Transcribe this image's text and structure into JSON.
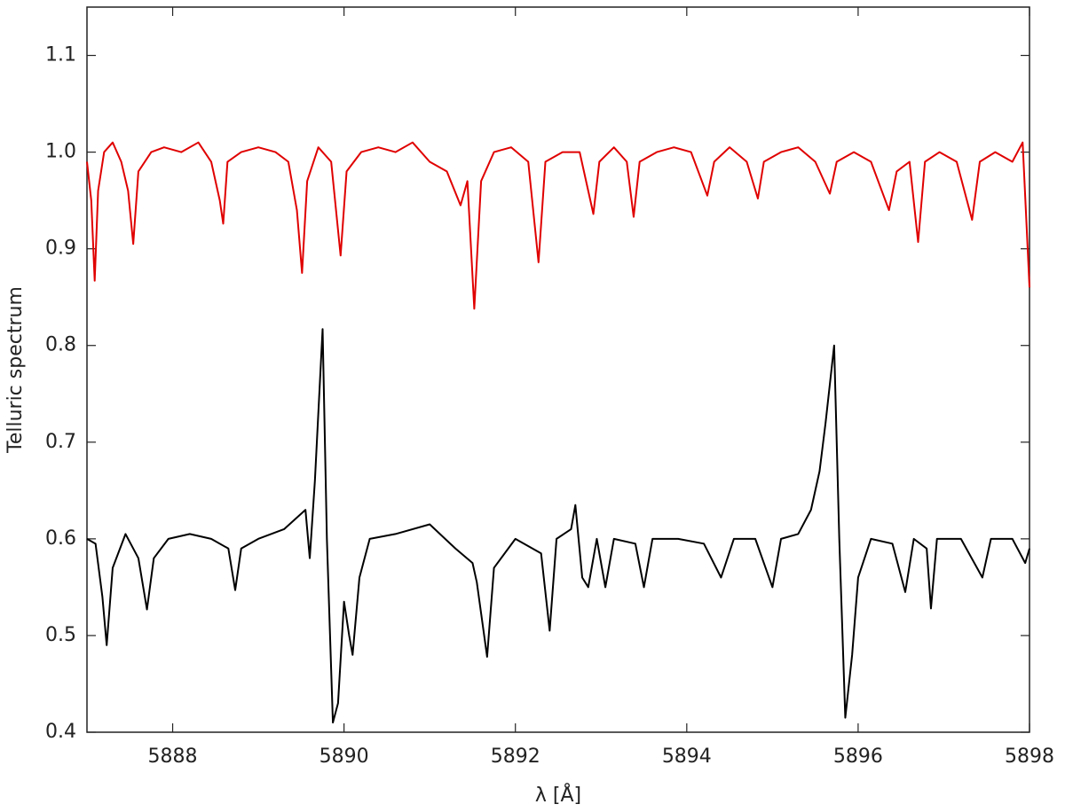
{
  "chart_data": {
    "type": "line",
    "xlabel": "λ [Å]",
    "ylabel": "Telluric spectrum",
    "xlim": [
      5887,
      5898
    ],
    "ylim": [
      0.4,
      1.15
    ],
    "xticks": [
      5888,
      5890,
      5892,
      5894,
      5896,
      5898
    ],
    "yticks": [
      0.4,
      0.5,
      0.6,
      0.7,
      0.8,
      0.9,
      {
        "value": 1,
        "label": "1.0"
      },
      1.1
    ],
    "grid": false,
    "series": [
      {
        "color": "#e00000",
        "x": [
          5887.0,
          5887.05,
          5887.09,
          5887.13,
          5887.2,
          5887.3,
          5887.4,
          5887.48,
          5887.54,
          5887.6,
          5887.75,
          5887.9,
          5888.1,
          5888.3,
          5888.45,
          5888.55,
          5888.59,
          5888.64,
          5888.8,
          5889.0,
          5889.2,
          5889.35,
          5889.45,
          5889.51,
          5889.57,
          5889.7,
          5889.85,
          5889.96,
          5890.03,
          5890.2,
          5890.4,
          5890.6,
          5890.8,
          5891.0,
          5891.2,
          5891.36,
          5891.44,
          5891.52,
          5891.6,
          5891.75,
          5891.95,
          5892.15,
          5892.27,
          5892.35,
          5892.55,
          5892.75,
          5892.91,
          5892.98,
          5893.15,
          5893.3,
          5893.38,
          5893.45,
          5893.65,
          5893.85,
          5894.05,
          5894.24,
          5894.32,
          5894.5,
          5894.7,
          5894.83,
          5894.9,
          5895.1,
          5895.3,
          5895.5,
          5895.67,
          5895.75,
          5895.95,
          5896.15,
          5896.36,
          5896.45,
          5896.6,
          5896.7,
          5896.78,
          5896.95,
          5897.15,
          5897.33,
          5897.42,
          5897.6,
          5897.8,
          5897.92,
          5898.0
        ],
        "values": [
          0.99,
          0.95,
          0.867,
          0.96,
          1.0,
          1.01,
          0.99,
          0.96,
          0.905,
          0.98,
          1.0,
          1.005,
          1.0,
          1.01,
          0.99,
          0.95,
          0.926,
          0.99,
          1.0,
          1.005,
          1.0,
          0.99,
          0.94,
          0.875,
          0.97,
          1.005,
          0.99,
          0.893,
          0.98,
          1.0,
          1.005,
          1.0,
          1.01,
          0.99,
          0.98,
          0.945,
          0.97,
          0.838,
          0.97,
          1.0,
          1.005,
          0.99,
          0.886,
          0.99,
          1.0,
          1.0,
          0.936,
          0.99,
          1.005,
          0.99,
          0.933,
          0.99,
          1.0,
          1.005,
          1.0,
          0.955,
          0.99,
          1.005,
          0.99,
          0.952,
          0.99,
          1.0,
          1.005,
          0.99,
          0.957,
          0.99,
          1.0,
          0.99,
          0.94,
          0.98,
          0.99,
          0.907,
          0.99,
          1.0,
          0.99,
          0.93,
          0.99,
          1.0,
          0.99,
          1.01,
          0.86
        ]
      },
      {
        "color": "#000000",
        "x": [
          5887.0,
          5887.1,
          5887.18,
          5887.23,
          5887.3,
          5887.45,
          5887.6,
          5887.7,
          5887.78,
          5887.95,
          5888.2,
          5888.45,
          5888.65,
          5888.73,
          5888.8,
          5889.0,
          5889.3,
          5889.55,
          5889.6,
          5889.66,
          5889.75,
          5889.8,
          5889.87,
          5889.93,
          5890.0,
          5890.06,
          5890.1,
          5890.18,
          5890.3,
          5890.6,
          5891.0,
          5891.3,
          5891.5,
          5891.55,
          5891.67,
          5891.75,
          5892.0,
          5892.3,
          5892.4,
          5892.48,
          5892.65,
          5892.7,
          5892.78,
          5892.85,
          5892.95,
          5893.05,
          5893.15,
          5893.4,
          5893.5,
          5893.6,
          5893.9,
          5894.2,
          5894.4,
          5894.55,
          5894.8,
          5895.0,
          5895.1,
          5895.3,
          5895.45,
          5895.55,
          5895.62,
          5895.72,
          5895.78,
          5895.85,
          5895.93,
          5896.0,
          5896.15,
          5896.4,
          5896.55,
          5896.65,
          5896.8,
          5896.85,
          5896.92,
          5897.2,
          5897.45,
          5897.55,
          5897.8,
          5897.95,
          5898.0
        ],
        "values": [
          0.6,
          0.595,
          0.54,
          0.49,
          0.57,
          0.605,
          0.58,
          0.527,
          0.58,
          0.6,
          0.605,
          0.6,
          0.59,
          0.547,
          0.59,
          0.6,
          0.61,
          0.63,
          0.58,
          0.66,
          0.817,
          0.6,
          0.41,
          0.43,
          0.535,
          0.5,
          0.48,
          0.56,
          0.6,
          0.605,
          0.615,
          0.59,
          0.575,
          0.555,
          0.478,
          0.57,
          0.6,
          0.585,
          0.505,
          0.6,
          0.61,
          0.635,
          0.56,
          0.55,
          0.6,
          0.55,
          0.6,
          0.595,
          0.55,
          0.6,
          0.6,
          0.595,
          0.56,
          0.6,
          0.6,
          0.55,
          0.6,
          0.605,
          0.63,
          0.67,
          0.72,
          0.8,
          0.6,
          0.415,
          0.48,
          0.56,
          0.6,
          0.595,
          0.545,
          0.6,
          0.59,
          0.528,
          0.6,
          0.6,
          0.56,
          0.6,
          0.6,
          0.575,
          0.59
        ]
      }
    ]
  }
}
